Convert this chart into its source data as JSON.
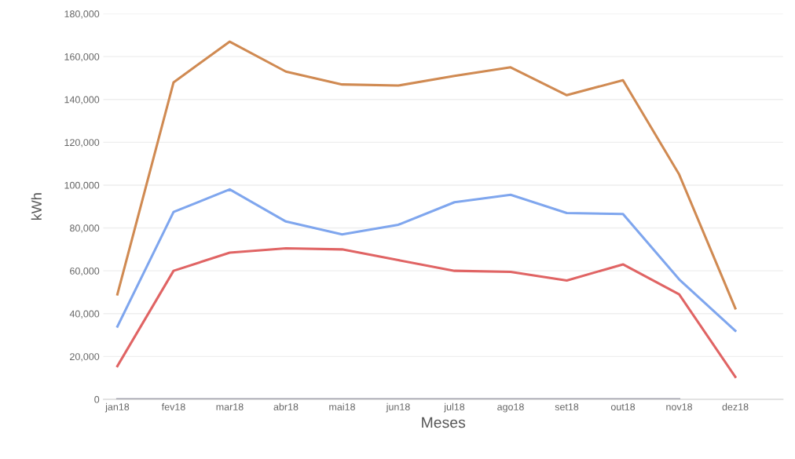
{
  "chart_data": {
    "type": "line",
    "xlabel": "Meses",
    "ylabel": "kWh",
    "categories": [
      "jan18",
      "fev18",
      "mar18",
      "abr18",
      "mai18",
      "jun18",
      "jul18",
      "ago18",
      "set18",
      "out18",
      "nov18",
      "dez18"
    ],
    "series": [
      {
        "color": "#d08a52",
        "values": [
          49000,
          148000,
          167000,
          153000,
          147000,
          146500,
          151000,
          155000,
          142000,
          149000,
          105000,
          42500
        ]
      },
      {
        "color": "#7fa6ee",
        "values": [
          34000,
          87500,
          98000,
          83000,
          77000,
          81500,
          92000,
          95500,
          87000,
          86500,
          56000,
          32000
        ]
      },
      {
        "color": "#e06464",
        "values": [
          15500,
          60000,
          68500,
          70500,
          70000,
          65000,
          60000,
          59500,
          55500,
          63000,
          49000,
          10500
        ]
      },
      {
        "color": "#8e8e9e",
        "values": [
          0,
          0,
          0,
          0,
          0,
          0,
          0,
          0,
          0,
          0,
          0,
          null
        ]
      }
    ],
    "ylim": [
      0,
      180000
    ],
    "yticks": [
      {
        "value": 0,
        "label": "0"
      },
      {
        "value": 20000,
        "label": "20,000"
      },
      {
        "value": 40000,
        "label": "40,000"
      },
      {
        "value": 60000,
        "label": "60,000"
      },
      {
        "value": 80000,
        "label": "80,000"
      },
      {
        "value": 100000,
        "label": "100,000"
      },
      {
        "value": 120000,
        "label": "120,000"
      },
      {
        "value": 140000,
        "label": "140,000"
      },
      {
        "value": 160000,
        "label": "160,000"
      },
      {
        "value": 180000,
        "label": "180,000"
      }
    ],
    "grid": "y"
  }
}
